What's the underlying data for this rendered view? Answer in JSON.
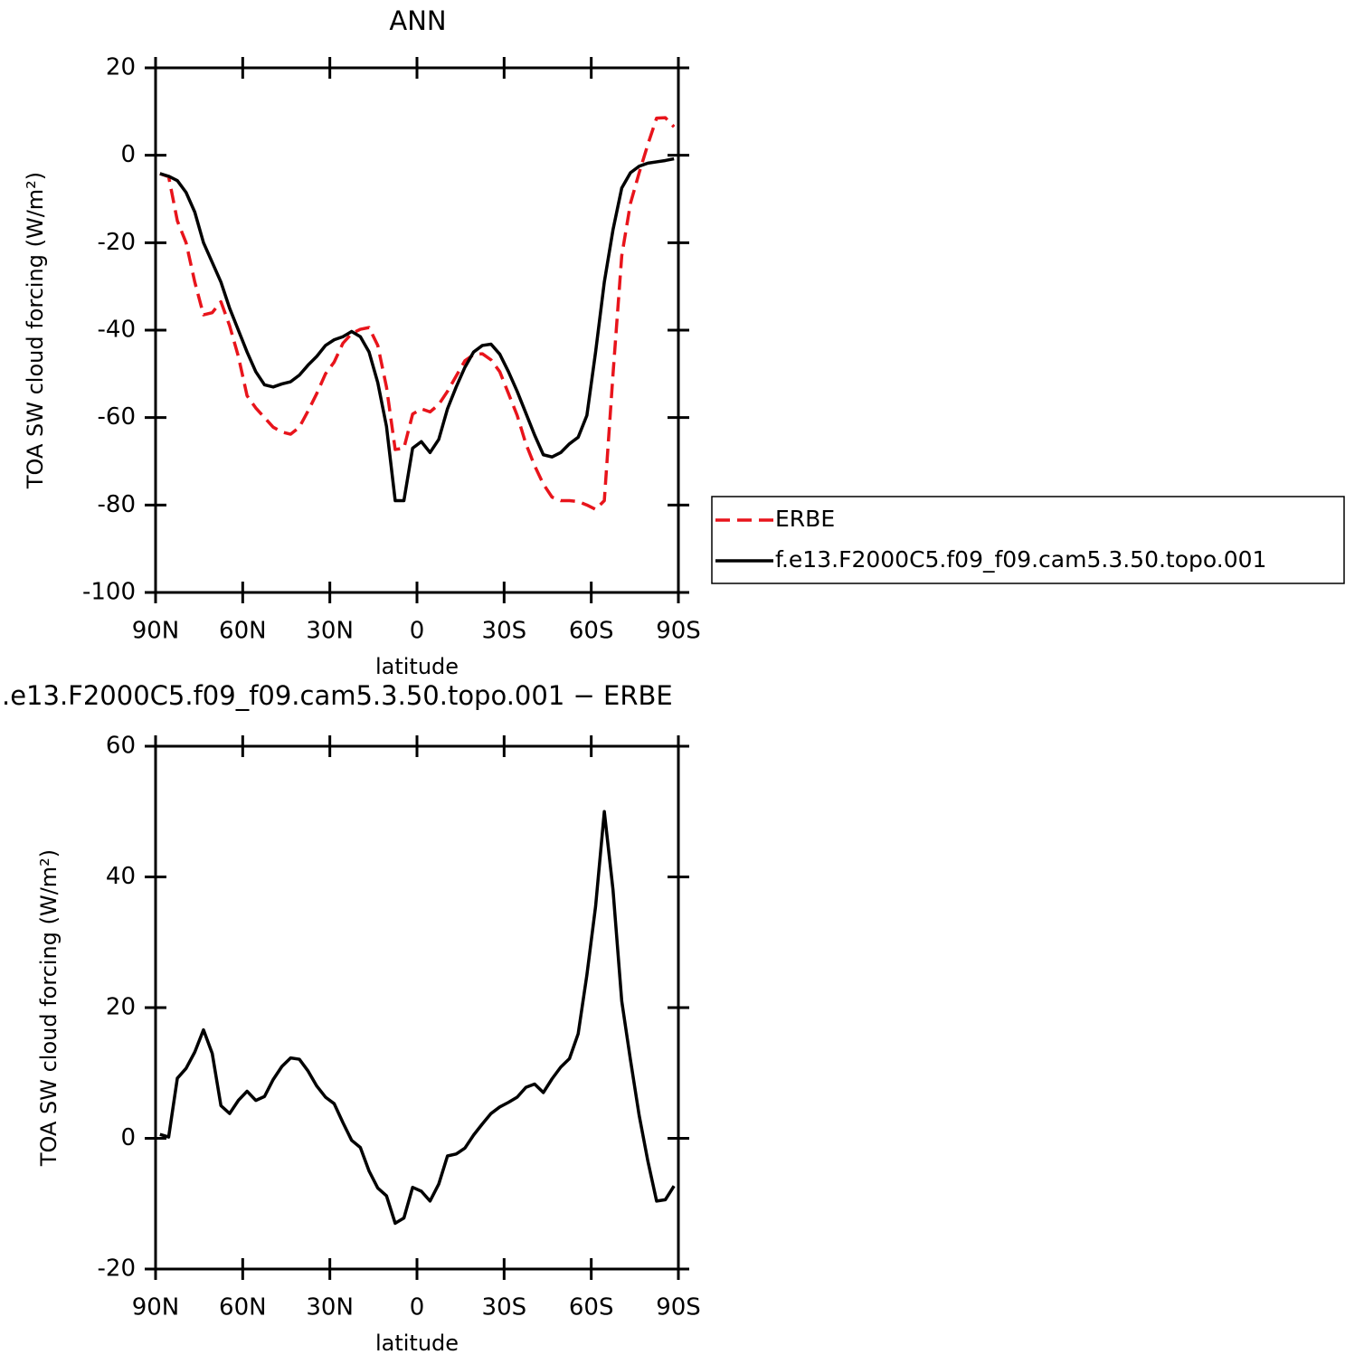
{
  "chart_data": [
    {
      "type": "line",
      "title": "ANN",
      "xlabel": "latitude",
      "ylabel": "TOA SW cloud forcing (W/m²)",
      "x": [
        88.5,
        85.5,
        82.5,
        79.5,
        76.5,
        73.5,
        70.5,
        67.5,
        64.5,
        61.5,
        58.5,
        55.5,
        52.5,
        49.5,
        46.5,
        43.5,
        40.5,
        37.5,
        34.5,
        31.5,
        28.5,
        25.5,
        22.5,
        19.5,
        16.5,
        13.5,
        10.5,
        7.5,
        4.5,
        1.5,
        -1.5,
        -4.5,
        -7.5,
        -10.5,
        -13.5,
        -16.5,
        -19.5,
        -22.5,
        -25.5,
        -28.5,
        -31.5,
        -34.5,
        -37.5,
        -40.5,
        -43.5,
        -46.5,
        -49.5,
        -52.5,
        -55.5,
        -58.5,
        -61.5,
        -64.5,
        -67.5,
        -70.5,
        -73.5,
        -76.5,
        -79.5,
        -82.5,
        -85.5,
        -88.5
      ],
      "series": [
        {
          "name": "ERBE",
          "color": "#e8141b",
          "linestyle": "dashed",
          "values": [
            -4.2,
            -4.9,
            -15,
            -20,
            -29,
            -36.5,
            -36,
            -33.5,
            -39,
            -46,
            -55,
            -57.8,
            -60,
            -62.2,
            -63.3,
            -63.8,
            -62.2,
            -58.5,
            -54.5,
            -50,
            -47.3,
            -43,
            -40.8,
            -39.8,
            -39.4,
            -43.5,
            -53,
            -67.3,
            -67,
            -59.2,
            -58,
            -58.7,
            -57,
            -54,
            -50.5,
            -47,
            -45.6,
            -45.4,
            -46.8,
            -49.5,
            -54.5,
            -59.5,
            -66,
            -71,
            -75.2,
            -78.2,
            -79,
            -79,
            -79.2,
            -80,
            -81,
            -79,
            -50,
            -23,
            -11,
            -4,
            2.5,
            8.5,
            8.6,
            6.5
          ]
        },
        {
          "name": "f.e13.F2000C5.f09_f09.cam5.3.50.topo.001",
          "color": "#000000",
          "linestyle": "solid",
          "values": [
            -4.2,
            -4.8,
            -5.8,
            -8.5,
            -13,
            -20,
            -24.5,
            -29,
            -35,
            -40,
            -45,
            -49.5,
            -52.5,
            -53,
            -52.3,
            -51.8,
            -50.3,
            -48,
            -46,
            -43.5,
            -42.2,
            -41.5,
            -40.3,
            -41.5,
            -45,
            -52,
            -62,
            -79,
            -79,
            -67,
            -65.5,
            -68,
            -65,
            -58,
            -53,
            -48.5,
            -45,
            -43.5,
            -43.2,
            -45.5,
            -49.5,
            -54,
            -59,
            -64,
            -68.5,
            -69,
            -68,
            -66,
            -64.5,
            -59.5,
            -45,
            -29,
            -17,
            -7.5,
            -4,
            -2.5,
            -1.8,
            -1.5,
            -1.2,
            -0.8
          ]
        }
      ],
      "xlim": [
        90,
        -90
      ],
      "xticks": [
        {
          "value": 90,
          "label": "90N"
        },
        {
          "value": 60,
          "label": "60N"
        },
        {
          "value": 30,
          "label": "30N"
        },
        0,
        {
          "value": -30,
          "label": "30S"
        },
        {
          "value": -60,
          "label": "60S"
        },
        {
          "value": -90,
          "label": "90S"
        }
      ],
      "ylim": [
        -100,
        20
      ],
      "yticks": [
        -100,
        -80,
        -60,
        -40,
        -20,
        0,
        20
      ],
      "legend": "right"
    },
    {
      "type": "line",
      "title": ".e13.F2000C5.f09_f09.cam5.3.50.topo.001  −  ERBE",
      "xlabel": "latitude",
      "ylabel": "TOA SW cloud forcing (W/m²)",
      "x": [
        88.5,
        85.5,
        82.5,
        79.5,
        76.5,
        73.5,
        70.5,
        67.5,
        64.5,
        61.5,
        58.5,
        55.5,
        52.5,
        49.5,
        46.5,
        43.5,
        40.5,
        37.5,
        34.5,
        31.5,
        28.5,
        25.5,
        22.5,
        19.5,
        16.5,
        13.5,
        10.5,
        7.5,
        4.5,
        1.5,
        -1.5,
        -4.5,
        -7.5,
        -10.5,
        -13.5,
        -16.5,
        -19.5,
        -22.5,
        -25.5,
        -28.5,
        -31.5,
        -34.5,
        -37.5,
        -40.5,
        -43.5,
        -46.5,
        -49.5,
        -52.5,
        -55.5,
        -58.5,
        -61.5,
        -64.5,
        -67.5,
        -70.5,
        -73.5,
        -76.5,
        -79.5,
        -82.5,
        -85.5,
        -88.5
      ],
      "values": [
        0.6,
        0.2,
        9.2,
        10.7,
        13.2,
        16.6,
        13,
        5,
        3.8,
        5.8,
        7.2,
        5.8,
        6.4,
        9,
        11,
        12.3,
        12.1,
        10.3,
        8,
        6.3,
        5.3,
        2.4,
        -0.3,
        -1.4,
        -5,
        -7.6,
        -8.8,
        -13,
        -12.2,
        -7.5,
        -8.1,
        -9.6,
        -7,
        -2.7,
        -2.4,
        -1.5,
        0.5,
        2.2,
        3.8,
        4.8,
        5.5,
        6.3,
        7.8,
        8.3,
        7,
        9.1,
        10.9,
        12.2,
        16,
        25,
        35.5,
        50,
        38,
        21,
        12,
        3.5,
        -3.5,
        -9.6,
        -9.4,
        -7.3
      ],
      "color": "#000000",
      "linestyle": "solid",
      "xlim": [
        90,
        -90
      ],
      "xticks": [
        {
          "value": 90,
          "label": "90N"
        },
        {
          "value": 60,
          "label": "60N"
        },
        {
          "value": 30,
          "label": "30N"
        },
        0,
        {
          "value": -30,
          "label": "30S"
        },
        {
          "value": -60,
          "label": "60S"
        },
        {
          "value": -90,
          "label": "90S"
        }
      ],
      "ylim": [
        -20,
        60
      ],
      "yticks": [
        -20,
        0,
        20,
        40,
        60
      ]
    }
  ]
}
